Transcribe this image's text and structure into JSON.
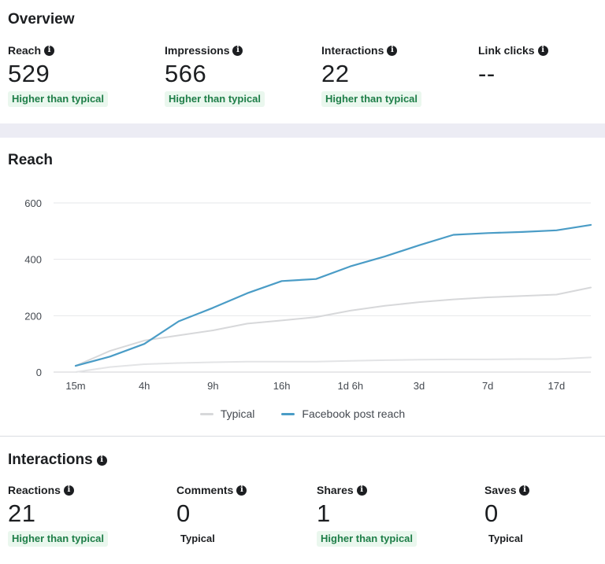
{
  "overview": {
    "title": "Overview",
    "metrics": [
      {
        "label": "Reach",
        "value": "529",
        "badge": "Higher than typical"
      },
      {
        "label": "Impressions",
        "value": "566",
        "badge": "Higher than typical"
      },
      {
        "label": "Interactions",
        "value": "22",
        "badge": "Higher than typical"
      },
      {
        "label": "Link clicks",
        "value": "--",
        "badge": ""
      }
    ]
  },
  "reach_section": {
    "title": "Reach"
  },
  "chart_data": {
    "type": "line",
    "x": [
      "15m",
      "",
      "4h",
      "",
      "9h",
      "",
      "16h",
      "",
      "1d 6h",
      "",
      "3d",
      "",
      "7d",
      "",
      "17d",
      ""
    ],
    "x_tick_labels": [
      "15m",
      "4h",
      "9h",
      "16h",
      "1d 6h",
      "3d",
      "7d",
      "17d"
    ],
    "yticks": [
      0,
      200,
      400,
      600
    ],
    "ylim": [
      0,
      600
    ],
    "grid": true,
    "legend_position": "bottom",
    "series": [
      {
        "name": "Typical",
        "color": "#d7d8da",
        "values": [
          22,
          75,
          112,
          130,
          148,
          172,
          183,
          195,
          218,
          235,
          248,
          258,
          265,
          270,
          275,
          300
        ]
      },
      {
        "name": "",
        "color": "#e3e4e6",
        "values": [
          0,
          18,
          28,
          32,
          35,
          37,
          37,
          37,
          40,
          42,
          44,
          45,
          45,
          46,
          46,
          52
        ]
      },
      {
        "name": "Facebook post reach",
        "color": "#4a9cc6",
        "values": [
          22,
          55,
          100,
          180,
          228,
          280,
          323,
          330,
          375,
          410,
          450,
          487,
          493,
          497,
          503,
          522
        ]
      }
    ]
  },
  "interactions": {
    "title": "Interactions",
    "metrics": [
      {
        "label": "Reactions",
        "value": "21",
        "badge": "Higher than typical",
        "kind": "high"
      },
      {
        "label": "Comments",
        "value": "0",
        "badge": "Typical",
        "kind": "typical"
      },
      {
        "label": "Shares",
        "value": "1",
        "badge": "Higher than typical",
        "kind": "high"
      },
      {
        "label": "Saves",
        "value": "0",
        "badge": "Typical",
        "kind": "typical"
      }
    ]
  },
  "colors": {
    "accent_line": "#4a9cc6",
    "typical_line": "#d7d8da",
    "badge_green_text": "#1e7e48",
    "badge_green_bg": "#eaf7ee"
  }
}
